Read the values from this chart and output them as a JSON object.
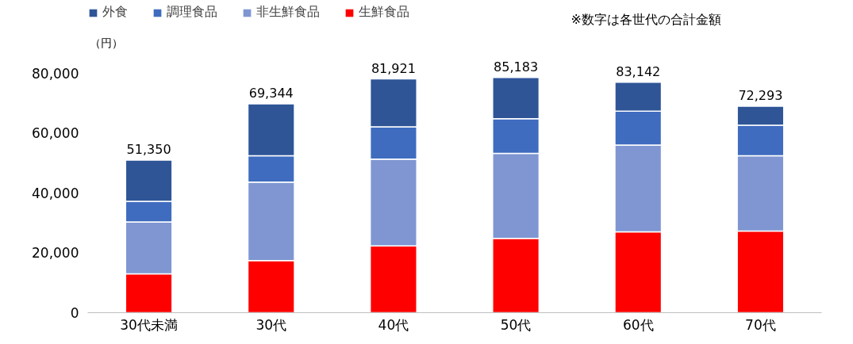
{
  "chart_data": {
    "type": "bar",
    "stacked": true,
    "ylabel": "（円）",
    "categories": [
      "30代未満",
      "30代",
      "40代",
      "50代",
      "60代",
      "70代"
    ],
    "series": [
      {
        "name": "生鮮食品",
        "color": "#ff0000",
        "values": [
          13000,
          17400,
          22300,
          24800,
          27000,
          27300
        ]
      },
      {
        "name": "非生鮮食品",
        "color": "#7f96d2",
        "values": [
          17300,
          26200,
          29000,
          28400,
          29000,
          25100
        ]
      },
      {
        "name": "調理食品",
        "color": "#3f6cbf",
        "values": [
          6900,
          8800,
          10800,
          11600,
          11300,
          10200
        ]
      },
      {
        "name": "外食",
        "color": "#2f5597",
        "values": [
          13800,
          17400,
          16000,
          13800,
          9700,
          6400
        ]
      }
    ],
    "annotations": [
      "※数字は各世代の合計金額",
      {
        "text": "51,350",
        "x": "30代未満",
        "y": 51000
      },
      {
        "text": "69,344",
        "x": "30代",
        "y": 69800
      },
      {
        "text": "81,921",
        "x": "40代",
        "y": 78100
      },
      {
        "text": "85,183",
        "x": "50代",
        "y": 78600
      },
      {
        "text": "83,142",
        "x": "60代",
        "y": 77000
      },
      {
        "text": "72,293",
        "x": "70代",
        "y": 69000
      }
    ],
    "ylim": [
      0,
      103000
    ],
    "yticks": [
      {
        "value": 0,
        "label": "0"
      },
      {
        "value": 20000,
        "label": "20,000"
      },
      {
        "value": 40000,
        "label": "40,000"
      },
      {
        "value": 60000,
        "label": "60,000"
      },
      {
        "value": 80000,
        "label": "80,000"
      }
    ],
    "grid": false,
    "legend": "top"
  }
}
